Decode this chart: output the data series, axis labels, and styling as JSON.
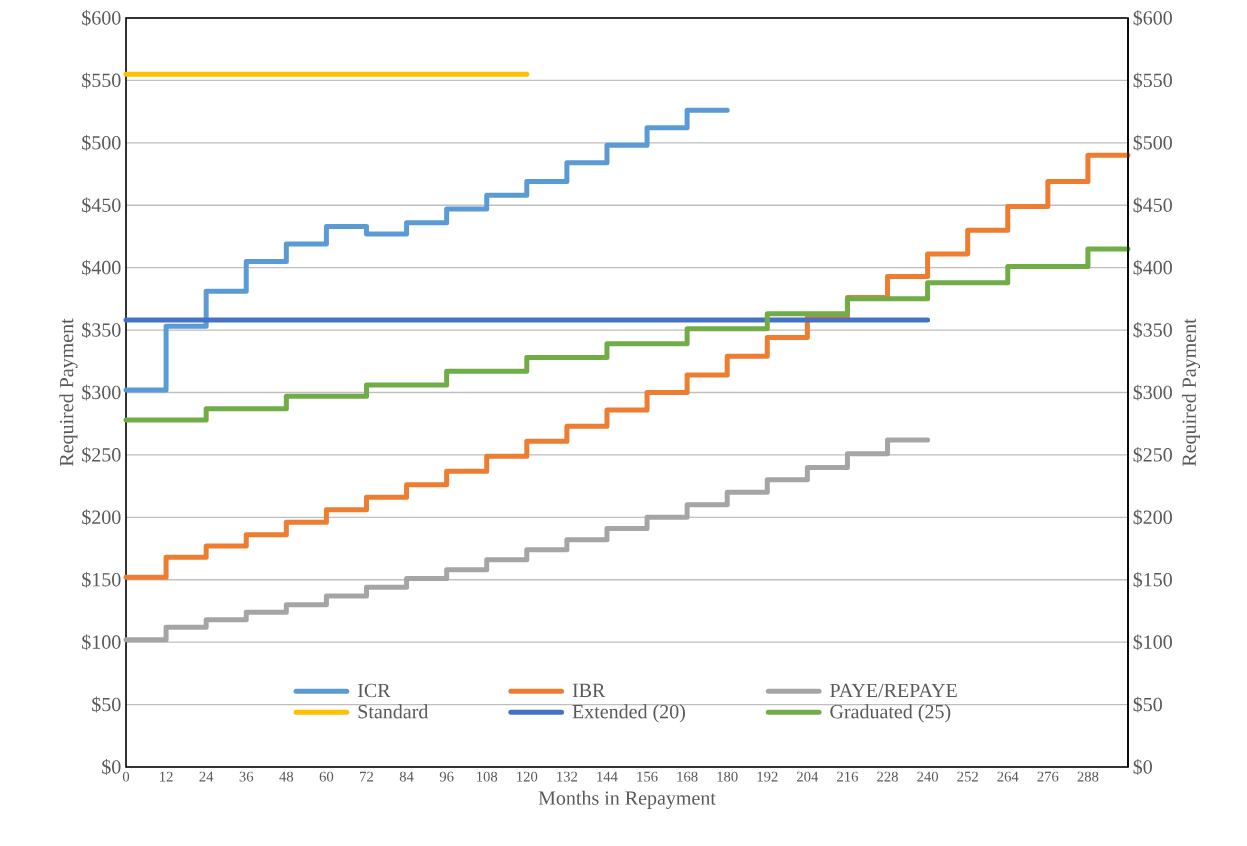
{
  "chart_data": {
    "type": "step",
    "xlabel": "Months in Repayment",
    "ylabel": "Required Payment",
    "y2label": "Required Payment",
    "xlim": [
      0,
      300
    ],
    "xticks": [
      0,
      12,
      24,
      36,
      48,
      60,
      72,
      84,
      96,
      108,
      120,
      132,
      144,
      156,
      168,
      180,
      192,
      204,
      216,
      228,
      240,
      252,
      264,
      276,
      288
    ],
    "ylim": [
      0,
      600
    ],
    "yticks": [
      {
        "value": 0,
        "label": "$0"
      },
      {
        "value": 50,
        "label": "$50"
      },
      {
        "value": 100,
        "label": "$100"
      },
      {
        "value": 150,
        "label": "$150"
      },
      {
        "value": 200,
        "label": "$200"
      },
      {
        "value": 250,
        "label": "$250"
      },
      {
        "value": 300,
        "label": "$300"
      },
      {
        "value": 350,
        "label": "$350"
      },
      {
        "value": 400,
        "label": "$400"
      },
      {
        "value": 450,
        "label": "$450"
      },
      {
        "value": 500,
        "label": "$500"
      },
      {
        "value": 550,
        "label": "$550"
      },
      {
        "value": 600,
        "label": "$600"
      }
    ],
    "y2lim": [
      0,
      600
    ],
    "y2ticks": [
      {
        "value": 0,
        "label": "$0"
      },
      {
        "value": 50,
        "label": "$50"
      },
      {
        "value": 100,
        "label": "$100"
      },
      {
        "value": 150,
        "label": "$150"
      },
      {
        "value": 200,
        "label": "$200"
      },
      {
        "value": 250,
        "label": "$250"
      },
      {
        "value": 300,
        "label": "$300"
      },
      {
        "value": 350,
        "label": "$350"
      },
      {
        "value": 400,
        "label": "$400"
      },
      {
        "value": 450,
        "label": "$450"
      },
      {
        "value": 500,
        "label": "$500"
      },
      {
        "value": 550,
        "label": "$550"
      },
      {
        "value": 600,
        "label": "$600"
      }
    ],
    "grid": "y",
    "legend": "bottom",
    "series": [
      {
        "name": "ICR",
        "color": "#5b9bd5",
        "x": [
          0,
          12,
          24,
          36,
          48,
          60,
          72,
          84,
          96,
          108,
          120,
          132,
          144,
          156,
          168,
          180
        ],
        "values": [
          302,
          353,
          381,
          405,
          419,
          433,
          427,
          436,
          447,
          458,
          469,
          484,
          498,
          512,
          526,
          526
        ]
      },
      {
        "name": "IBR",
        "color": "#ed7d31",
        "x": [
          0,
          12,
          24,
          36,
          48,
          60,
          72,
          84,
          96,
          108,
          120,
          132,
          144,
          156,
          168,
          180,
          192,
          204,
          216,
          228,
          240,
          252,
          264,
          276,
          288,
          300
        ],
        "values": [
          152,
          168,
          177,
          186,
          196,
          206,
          216,
          226,
          237,
          249,
          261,
          273,
          286,
          300,
          314,
          329,
          344,
          360,
          376,
          393,
          411,
          430,
          449,
          469,
          490,
          490
        ]
      },
      {
        "name": "PAYE/REPAYE",
        "color": "#a5a5a5",
        "x": [
          0,
          12,
          24,
          36,
          48,
          60,
          72,
          84,
          96,
          108,
          120,
          132,
          144,
          156,
          168,
          180,
          192,
          204,
          216,
          228,
          240
        ],
        "values": [
          102,
          112,
          118,
          124,
          130,
          137,
          144,
          151,
          158,
          166,
          174,
          182,
          191,
          200,
          210,
          220,
          230,
          240,
          251,
          262,
          262
        ]
      },
      {
        "name": "Standard",
        "color": "#ffc000",
        "x": [
          0,
          120
        ],
        "values": [
          555,
          555
        ]
      },
      {
        "name": "Extended (20)",
        "color": "#4472c4",
        "x": [
          0,
          240
        ],
        "values": [
          358,
          358
        ]
      },
      {
        "name": "Graduated (25)",
        "color": "#70ad47",
        "x": [
          0,
          24,
          48,
          72,
          96,
          120,
          144,
          168,
          192,
          216,
          240,
          264,
          288,
          300
        ],
        "values": [
          278,
          287,
          297,
          306,
          317,
          328,
          339,
          351,
          363,
          375,
          388,
          401,
          415,
          415
        ]
      }
    ]
  }
}
